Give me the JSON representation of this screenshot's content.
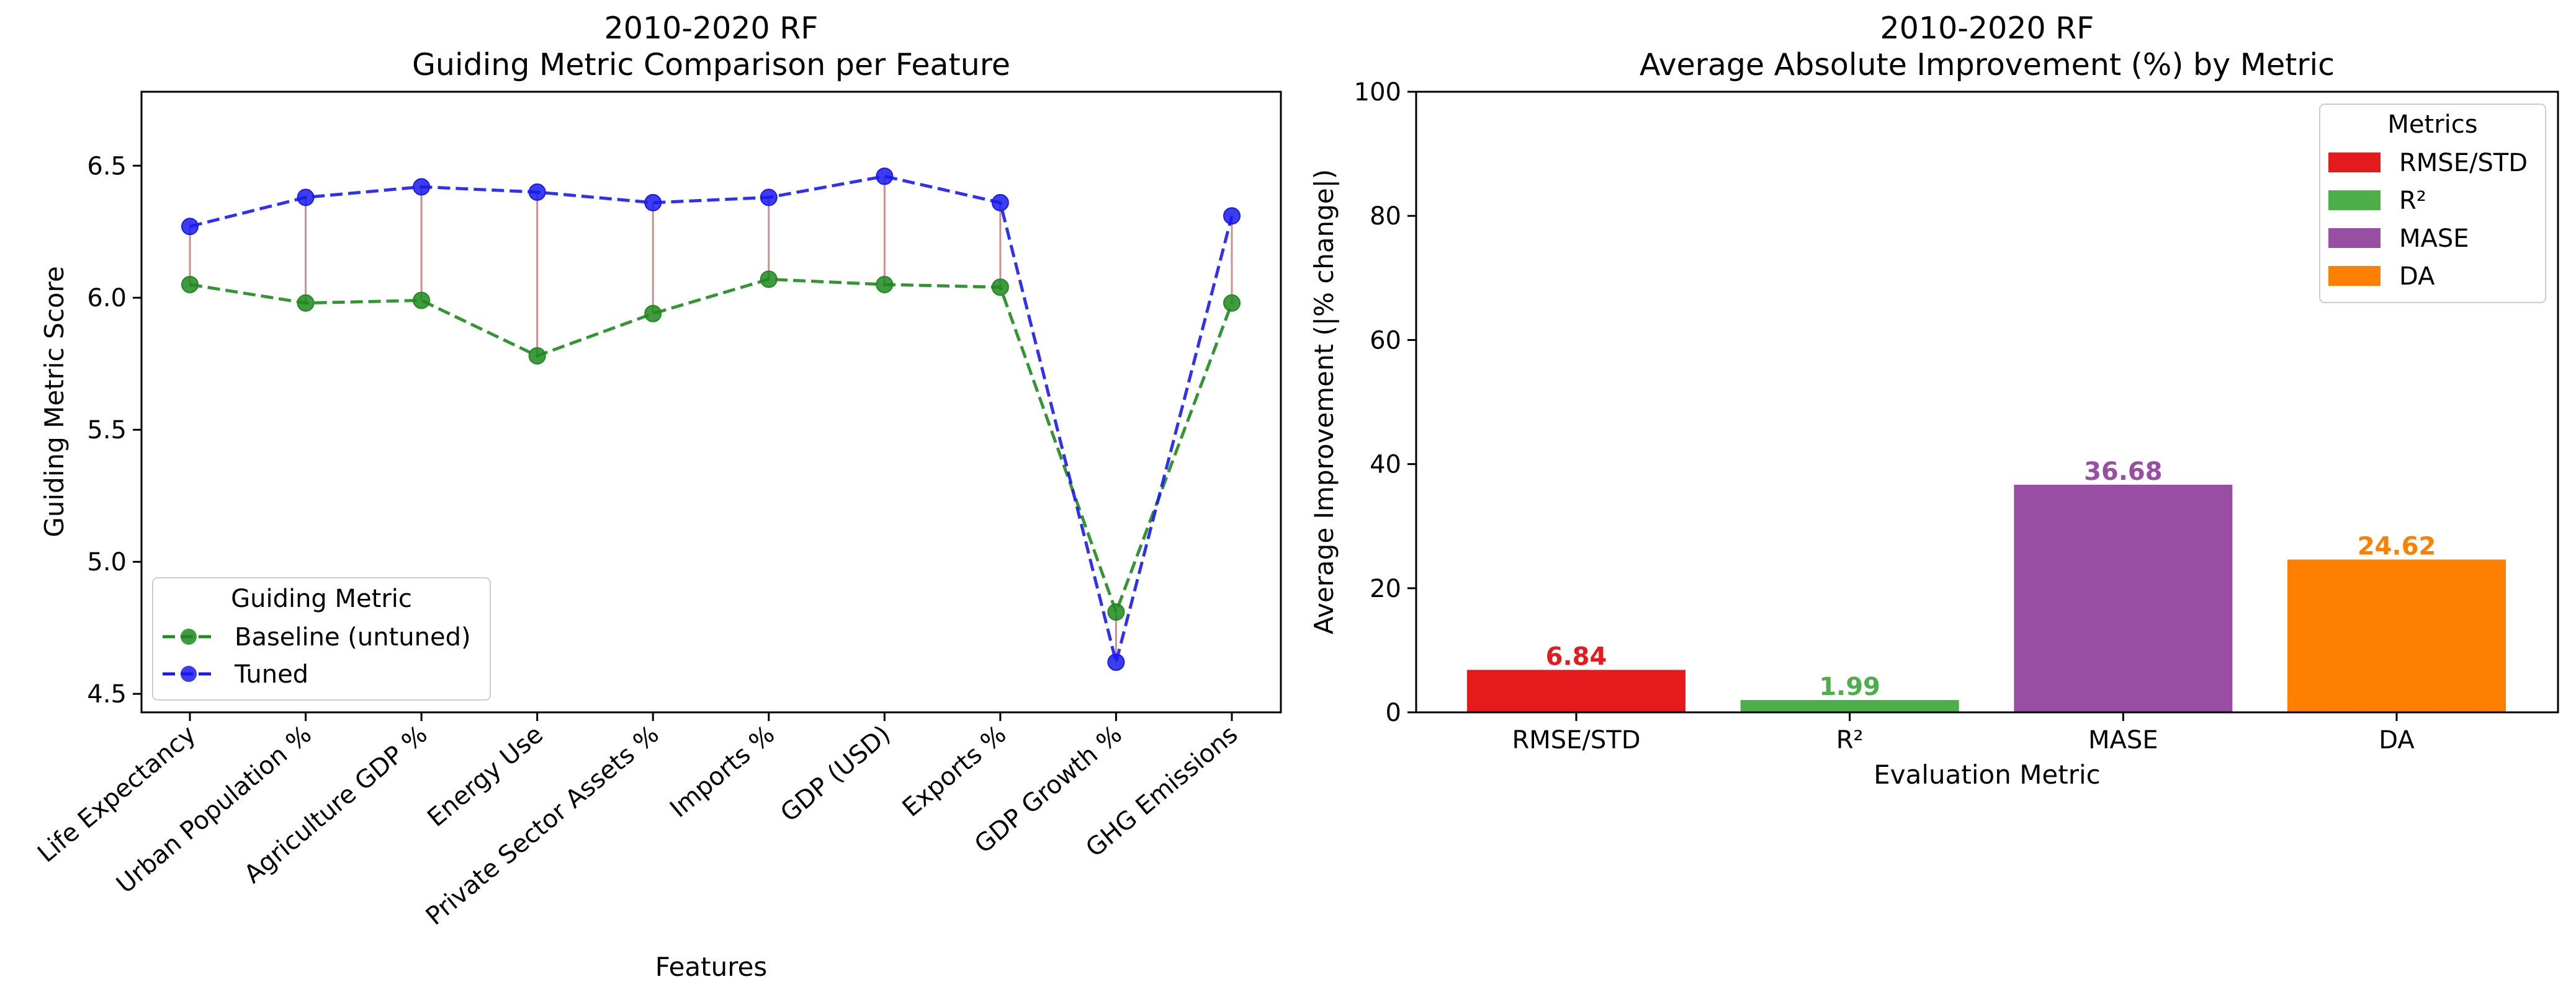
{
  "chart_data": [
    {
      "type": "line",
      "title": "2010-2020 RF",
      "subtitle": "Guiding Metric Comparison per Feature",
      "xlabel": "Features",
      "ylabel": "Guiding Metric Score",
      "ylim": [
        4.43,
        6.78
      ],
      "yticks": [
        "4.5",
        "5.0",
        "5.5",
        "6.0",
        "6.5"
      ],
      "categories": [
        "Life Expectancy",
        "Urban Population %",
        "Agriculture GDP %",
        "Energy Use",
        "Private Sector Assets %",
        "Imports %",
        "GDP (USD)",
        "Exports %",
        "GDP Growth %",
        "GHG Emissions"
      ],
      "series": [
        {
          "name": "Baseline (untuned)",
          "color": "#1f8a1f",
          "values": [
            6.05,
            5.98,
            5.99,
            5.78,
            5.94,
            6.07,
            6.05,
            6.04,
            4.81,
            5.98
          ]
        },
        {
          "name": "Tuned",
          "color": "#1a1aee",
          "values": [
            6.27,
            6.38,
            6.42,
            6.4,
            6.36,
            6.38,
            6.46,
            6.36,
            4.62,
            6.31
          ]
        }
      ],
      "connector_color": "#c77a7a",
      "grid": false,
      "legend": {
        "title": "Guiding Metric",
        "placement": "lower-left"
      }
    },
    {
      "type": "bar",
      "title": "2010-2020 RF",
      "subtitle": "Average Absolute Improvement (%) by Metric",
      "xlabel": "Evaluation Metric",
      "ylabel": "Average Improvement (|% change|)",
      "ylim": [
        0,
        100
      ],
      "yticks": [
        "0",
        "20",
        "40",
        "60",
        "80",
        "100"
      ],
      "categories": [
        "RMSE/STD",
        "R²",
        "MASE",
        "DA"
      ],
      "values": [
        6.84,
        1.99,
        36.68,
        24.62
      ],
      "labels": [
        "6.84",
        "1.99",
        "36.68",
        "24.62"
      ],
      "colors": [
        "#e41a1c",
        "#4daf4a",
        "#984ea3",
        "#ff7f00"
      ],
      "grid": false,
      "legend": {
        "title": "Metrics",
        "placement": "top-right"
      }
    }
  ]
}
